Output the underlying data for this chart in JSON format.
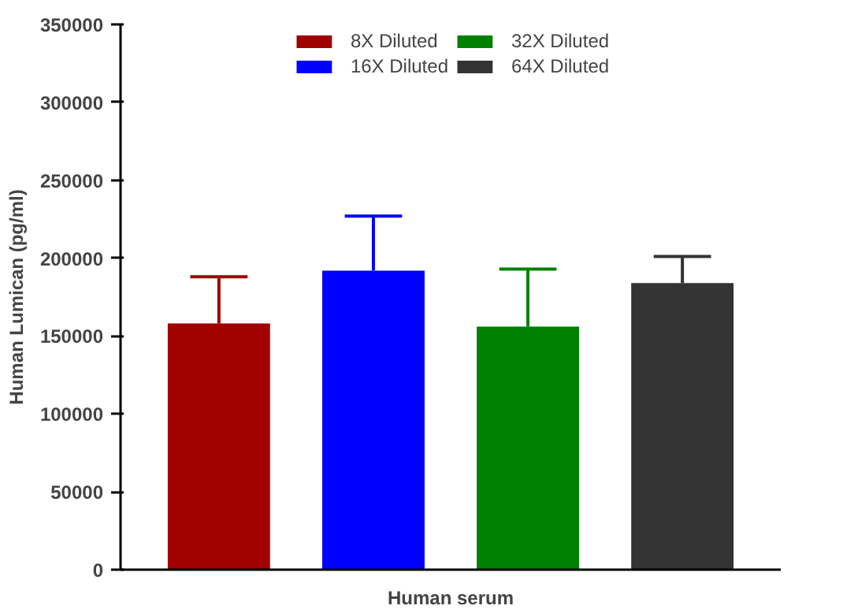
{
  "chart_data": {
    "type": "bar",
    "ylabel": "Human Lumican (pg/ml)",
    "categories": [
      "Human serum"
    ],
    "series": [
      {
        "name": "8X Diluted",
        "color": "#a00000",
        "values": [
          158000
        ],
        "errors": [
          [
            158000,
            188000
          ]
        ]
      },
      {
        "name": "16X Diluted",
        "color": "#0000ff",
        "values": [
          192000
        ],
        "errors": [
          [
            192000,
            227000
          ]
        ]
      },
      {
        "name": "32X Diluted",
        "color": "#008000",
        "values": [
          156000
        ],
        "errors": [
          [
            156000,
            193000
          ]
        ]
      },
      {
        "name": "64X Diluted",
        "color": "#333333",
        "values": [
          184000
        ],
        "errors": [
          [
            184000,
            201000
          ]
        ]
      }
    ],
    "ylim": [
      0,
      350000
    ],
    "yticks": [
      0,
      50000,
      100000,
      150000,
      200000,
      250000,
      300000,
      350000
    ],
    "grid": false,
    "legend": "top"
  }
}
